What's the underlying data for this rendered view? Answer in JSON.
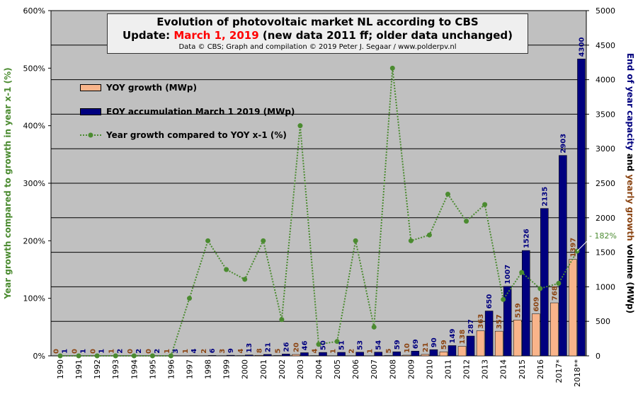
{
  "title": {
    "line1": "Evolution  of photovoltaic  market NL according to CBS",
    "line2_prefix": "Update: ",
    "line2_highlight": "March 1, 2019",
    "line2_suffix": " (new data 2011 ff; older data unchanged)",
    "line3": "Data © CBS; Graph and compilation © 2019 Peter J. Segaar / www.polderpv.nl"
  },
  "colors": {
    "plot_bg": "#c0c0c0",
    "yoy_fill": "#f9b48a",
    "eoy_fill": "#00007f",
    "growth_line": "#4b8b30",
    "label_brown": "#8b4513",
    "label_navy": "#00007f",
    "axis_green": "#4b8b30",
    "axis_navy": "#00007f",
    "axis_brown": "#8b4513"
  },
  "chart_data": {
    "type": "bar",
    "categories": [
      "1990",
      "1991",
      "1992",
      "1993",
      "1994",
      "1995",
      "1996",
      "1997",
      "1998",
      "1999",
      "2000",
      "2001",
      "2002",
      "2003",
      "2004",
      "2005",
      "2006",
      "2007",
      "2008",
      "2009",
      "2010",
      "2011",
      "2012",
      "2013",
      "2014",
      "2015",
      "2016",
      "2017*",
      "2018**"
    ],
    "series": [
      {
        "name": "YOY growth (MWp)",
        "axis": "right",
        "values": [
          0,
          0,
          0,
          1,
          0,
          0,
          1,
          1,
          2,
          3,
          4,
          8,
          5,
          20,
          4,
          1,
          2,
          1,
          5,
          10,
          21,
          59,
          138,
          363,
          357,
          519,
          609,
          768,
          1397
        ],
        "data_labels": [
          "0",
          "0",
          "0",
          "1",
          "0",
          "0",
          "1",
          "1",
          "2",
          "3",
          "4",
          "8",
          "5",
          "20",
          "4",
          "1",
          "2",
          "1",
          "5",
          "10",
          "21",
          "59",
          "138",
          "363",
          "357",
          "519",
          "609",
          "768",
          "1397"
        ]
      },
      {
        "name": "EOY accumulation March 1 2019 (MWp)",
        "axis": "right",
        "values": [
          1,
          1,
          1,
          2,
          2,
          2,
          3,
          4,
          6,
          9,
          13,
          21,
          26,
          46,
          50,
          51,
          53,
          54,
          59,
          69,
          90,
          149,
          287,
          650,
          1007,
          1526,
          2135,
          2903,
          4300
        ],
        "data_labels": [
          "1",
          "1",
          "1",
          "2",
          "2",
          "2",
          "3",
          "4",
          "6",
          "9",
          "13",
          "21",
          "26",
          "46",
          "50",
          "51",
          "53",
          "54",
          "59",
          "69",
          "90",
          "149",
          "287",
          "650",
          "1007",
          "1526",
          "2135",
          "2903",
          "4300"
        ]
      },
      {
        "name": "Year growth compared to YOY x-1 (%)",
        "axis": "left",
        "values": [
          0,
          0,
          0,
          0,
          0,
          0,
          0,
          100,
          200,
          150,
          133,
          200,
          63,
          400,
          20,
          25,
          200,
          50,
          500,
          200,
          210,
          281,
          234,
          263,
          98,
          145,
          117,
          126,
          182
        ]
      }
    ],
    "annotation": "182%",
    "y_left": {
      "label": "Year growth compared to growth in year x-1 (%)",
      "range": [
        0,
        600
      ],
      "ticks": [
        "0%",
        "100%",
        "200%",
        "300%",
        "400%",
        "500%",
        "600%"
      ]
    },
    "y_right": {
      "label_part1": "End of year capacity ",
      "label_part2": "and ",
      "label_part3": "yearly growth",
      "label_part4": " volume (MWp)",
      "range": [
        0,
        5000
      ],
      "ticks": [
        "0",
        "500",
        "1000",
        "1500",
        "2000",
        "2500",
        "3000",
        "3500",
        "4000",
        "4500",
        "5000"
      ]
    },
    "grid": true,
    "legend_position": "top-left"
  }
}
